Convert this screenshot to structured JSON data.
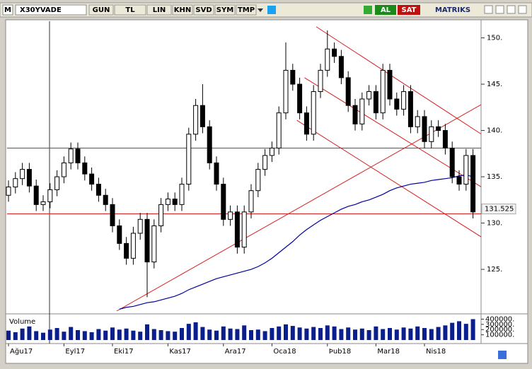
{
  "toolbar": {
    "logo": "M",
    "symbol": "X30YVADE",
    "buttons": [
      "GUN",
      "TL",
      "LIN",
      "KHN",
      "SVD",
      "SYM",
      "TMP"
    ],
    "buy": "AL",
    "sell": "SAT",
    "brand": "MATRIKS"
  },
  "chart_data": {
    "type": "candlestick",
    "categories": [
      "Ağu17",
      null,
      null,
      null,
      null,
      null,
      null,
      null,
      "Eyl17",
      null,
      null,
      null,
      null,
      null,
      null,
      "Eki17",
      null,
      null,
      null,
      null,
      null,
      null,
      null,
      "Kas17",
      null,
      null,
      null,
      null,
      null,
      null,
      null,
      "Ara17",
      null,
      null,
      null,
      null,
      null,
      null,
      "Oca18",
      null,
      null,
      null,
      null,
      null,
      null,
      null,
      "Þub18",
      null,
      null,
      null,
      null,
      null,
      null,
      "Mar18",
      null,
      null,
      null,
      null,
      null,
      null,
      "Nis18",
      null,
      null,
      null,
      null,
      null,
      null,
      null
    ],
    "open": [
      133.0,
      133.9,
      134.8,
      135.8,
      134.0,
      132.0,
      132.3,
      133.6,
      135.0,
      136.5,
      138.0,
      136.5,
      135.3,
      134.2,
      133.0,
      132.0,
      129.7,
      127.8,
      126.2,
      128.9,
      130.4,
      125.8,
      129.7,
      132.0,
      132.6,
      132.0,
      134.2,
      139.6,
      142.7,
      140.4,
      136.5,
      134.2,
      130.4,
      131.2,
      127.4,
      131.2,
      133.5,
      135.8,
      137.3,
      138.1,
      141.9,
      146.5,
      145.0,
      141.9,
      139.6,
      144.2,
      146.5,
      148.8,
      148.0,
      145.7,
      142.7,
      140.7,
      143.4,
      144.2,
      141.9,
      146.5,
      143.4,
      142.3,
      144.2,
      140.4,
      141.5,
      138.8,
      140.4,
      140.0,
      138.1,
      135.0,
      134.2,
      137.3
    ],
    "high": [
      134.6,
      135.5,
      136.5,
      136.5,
      134.7,
      133.0,
      134.3,
      135.7,
      137.2,
      138.7,
      138.7,
      137.2,
      136.0,
      134.9,
      133.7,
      132.7,
      130.4,
      128.5,
      129.6,
      131.1,
      131.1,
      130.4,
      132.7,
      133.3,
      133.3,
      134.9,
      140.3,
      143.4,
      145.0,
      141.1,
      137.2,
      134.9,
      131.9,
      131.9,
      131.9,
      134.2,
      136.5,
      138.0,
      138.8,
      142.6,
      149.5,
      147.2,
      145.7,
      142.6,
      144.9,
      147.2,
      150.8,
      149.5,
      148.7,
      146.4,
      143.4,
      144.1,
      144.9,
      144.9,
      147.2,
      147.2,
      144.1,
      144.9,
      144.9,
      142.2,
      142.2,
      141.1,
      141.1,
      140.7,
      138.8,
      135.7,
      138.0,
      138.0
    ],
    "low": [
      132.3,
      133.2,
      134.1,
      133.3,
      131.3,
      131.3,
      131.6,
      132.9,
      134.3,
      135.8,
      135.8,
      134.6,
      133.5,
      132.3,
      131.3,
      129.0,
      127.1,
      125.5,
      125.5,
      128.2,
      122.0,
      125.1,
      129.0,
      131.3,
      131.3,
      131.3,
      133.5,
      138.9,
      139.7,
      135.8,
      133.5,
      129.7,
      129.7,
      126.7,
      126.7,
      130.5,
      132.8,
      135.1,
      136.6,
      137.4,
      141.2,
      144.3,
      141.2,
      138.9,
      138.9,
      143.5,
      145.8,
      147.3,
      145.0,
      142.0,
      140.0,
      140.0,
      142.7,
      141.2,
      141.2,
      142.7,
      141.6,
      141.6,
      139.7,
      139.7,
      138.1,
      138.1,
      139.3,
      137.4,
      134.3,
      133.5,
      133.5,
      130.5
    ],
    "close": [
      133.9,
      134.8,
      135.8,
      134.0,
      132.0,
      132.3,
      133.6,
      135.0,
      136.5,
      138.0,
      136.5,
      135.3,
      134.2,
      133.0,
      132.0,
      129.7,
      127.8,
      126.2,
      128.9,
      130.4,
      125.8,
      129.7,
      132.0,
      132.6,
      132.0,
      134.2,
      139.6,
      142.7,
      140.4,
      136.5,
      134.2,
      130.4,
      131.2,
      127.4,
      131.2,
      133.5,
      135.8,
      137.3,
      138.1,
      141.9,
      146.5,
      145.0,
      141.9,
      139.6,
      144.2,
      146.5,
      148.8,
      148.0,
      145.7,
      142.7,
      140.7,
      143.4,
      144.2,
      141.9,
      146.5,
      143.4,
      142.3,
      144.2,
      140.4,
      141.5,
      138.8,
      140.4,
      140.0,
      138.1,
      135.0,
      134.2,
      137.3,
      131.2
    ],
    "ylim": [
      120.5,
      151.8
    ],
    "yticks": [
      {
        "value": 125,
        "label": "125."
      },
      {
        "value": 130,
        "label": "130."
      },
      {
        "value": 135,
        "label": "135."
      },
      {
        "value": 140,
        "label": "140."
      },
      {
        "value": 145,
        "label": "145."
      },
      {
        "value": 150,
        "label": "150."
      }
    ],
    "last_price": 131.525,
    "moving_average": {
      "color": "#0000a0",
      "values": [
        null,
        null,
        null,
        null,
        null,
        null,
        null,
        null,
        null,
        null,
        null,
        null,
        null,
        null,
        null,
        null,
        120.7,
        120.9,
        121.0,
        121.2,
        121.4,
        121.5,
        121.7,
        121.9,
        122.1,
        122.4,
        122.8,
        123.1,
        123.4,
        123.7,
        124.0,
        124.2,
        124.4,
        124.6,
        124.8,
        125.0,
        125.3,
        125.7,
        126.2,
        126.8,
        127.4,
        128.0,
        128.7,
        129.3,
        129.8,
        130.3,
        130.7,
        131.1,
        131.5,
        131.8,
        132.0,
        132.3,
        132.5,
        132.8,
        133.1,
        133.5,
        133.8,
        134.0,
        134.2,
        134.3,
        134.4,
        134.6,
        134.7,
        134.8,
        134.9,
        135.1,
        135.2,
        135.0
      ]
    },
    "line_color": "#d42020",
    "hlines": [
      138.1,
      131.0
    ],
    "trendlines": [
      [
        [
          15.6,
          120.5
        ],
        [
          68.2,
          142.8
        ]
      ],
      [
        [
          44.4,
          151.2
        ],
        [
          68.2,
          139.6
        ]
      ],
      [
        [
          42.7,
          145.7
        ],
        [
          68.2,
          133.9
        ]
      ],
      [
        [
          41.6,
          141.1
        ],
        [
          68.2,
          128.5
        ]
      ]
    ],
    "volume": {
      "title": "Volume",
      "color": "#0a1e8c",
      "ylim": [
        0,
        420000
      ],
      "yticks": [
        {
          "value": 100000,
          "label": "100000."
        },
        {
          "value": 200000,
          "label": "200000."
        },
        {
          "value": 300000,
          "label": "300000."
        },
        {
          "value": 400000,
          "label": "400000."
        }
      ],
      "values": [
        180000,
        150000,
        220000,
        260000,
        170000,
        140000,
        200000,
        230000,
        160000,
        250000,
        190000,
        170000,
        150000,
        210000,
        180000,
        240000,
        200000,
        220000,
        180000,
        160000,
        300000,
        210000,
        190000,
        170000,
        160000,
        230000,
        310000,
        340000,
        250000,
        200000,
        180000,
        260000,
        220000,
        210000,
        280000,
        190000,
        200000,
        170000,
        230000,
        260000,
        300000,
        270000,
        240000,
        220000,
        250000,
        230000,
        280000,
        260000,
        210000,
        240000,
        200000,
        220000,
        190000,
        260000,
        210000,
        230000,
        200000,
        240000,
        220000,
        260000,
        230000,
        210000,
        250000,
        280000,
        330000,
        360000,
        310000,
        400000
      ]
    }
  }
}
